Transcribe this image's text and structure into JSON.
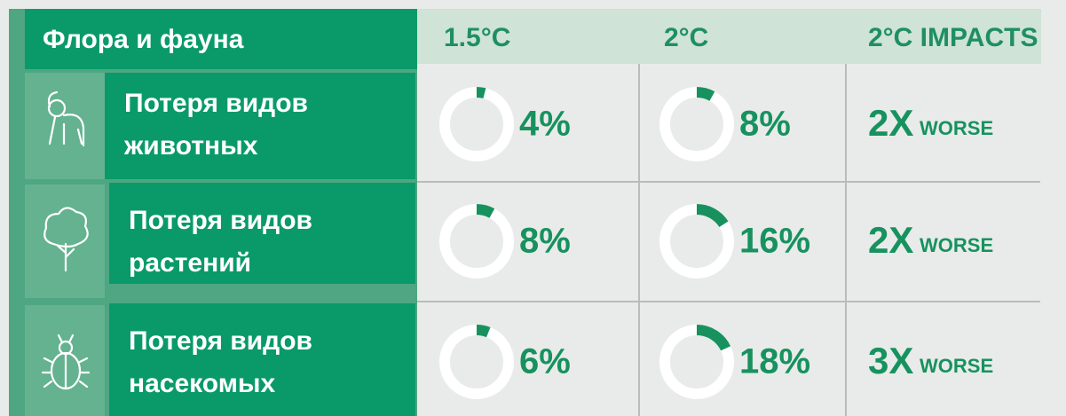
{
  "header": {
    "title": "Флора и фауна",
    "columns": [
      "1.5°C",
      "2°C",
      "2°C IMPACTS"
    ]
  },
  "rows": [
    {
      "label": [
        "Потеря видов",
        "животных"
      ],
      "values": [
        4,
        8
      ],
      "value_labels": [
        "4%",
        "8%"
      ],
      "impact": "2X",
      "impact_unit": "WORSE"
    },
    {
      "label": [
        "Потеря видов",
        "растений"
      ],
      "values": [
        8,
        16
      ],
      "value_labels": [
        "8%",
        "16%"
      ],
      "impact": "2X",
      "impact_unit": "WORSE"
    },
    {
      "label": [
        "Потеря видов",
        "насекомых"
      ],
      "values": [
        6,
        18
      ],
      "value_labels": [
        "6%",
        "18%"
      ],
      "impact": "3X",
      "impact_unit": "WORSE"
    }
  ]
}
